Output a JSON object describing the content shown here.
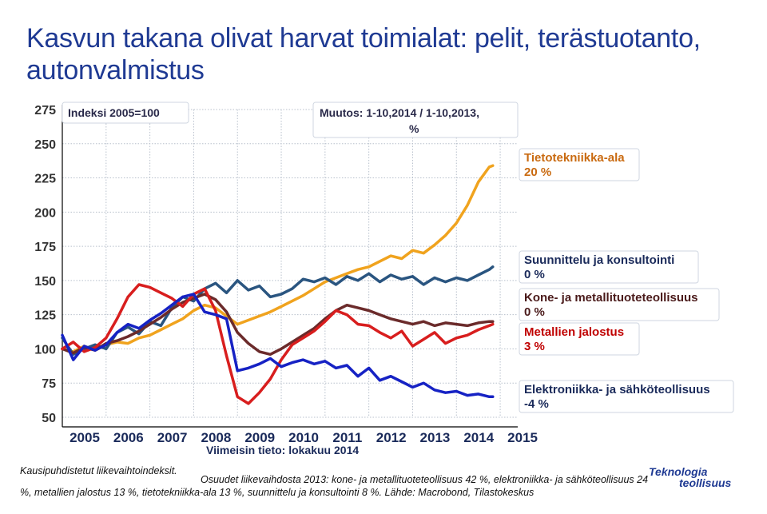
{
  "title": "Kasvun takana olivat harvat toimialat: pelit, terästuotanto, autonvalmistus",
  "notes": {
    "index_base": "Indeksi 2005=100",
    "change_line1": "Muutos: 1-10,2014 / 1-10,2013,",
    "change_line2": "%",
    "latest": "Viimeisin tieto: lokakuu 2014"
  },
  "footer": {
    "line1": "Kausipuhdistetut liikevaihtoindeksit.",
    "line2": "Osuudet liikevaihdosta 2013: kone- ja metallituoteteollisuus 42 %, elektroniikka- ja sähköteollisuus 24 %, metallien jalostus 13 %, tietotekniikka-ala 13 %, suunnittelu ja konsultointi 8 %. Lähde: Macrobond, Tilastokeskus"
  },
  "logo": {
    "line1": "Teknologia",
    "line2": "teollisuus"
  },
  "labels": [
    {
      "name": "Tietotekniikka-ala",
      "change": "20 %",
      "color": "#1a2a5a"
    },
    {
      "name": "Suunnittelu ja konsultointi",
      "change": "0 %",
      "color": "#1a2a5a"
    },
    {
      "name": "Kone- ja metallituoteteollisuus",
      "change": "0 %",
      "color": "#1a2a5a"
    },
    {
      "name": "Metallien jalostus",
      "change": "3 %",
      "color": "#c00000"
    },
    {
      "name": "Elektroniikka- ja sähköteollisuus",
      "change": "-4 %",
      "color": "#1a2a5a"
    }
  ],
  "chart_data": {
    "type": "line",
    "title": "Kasvun takana olivat harvat toimialat: pelit, terästuotanto, autonvalmistus",
    "ylabel": "",
    "ylim": [
      50,
      275
    ],
    "yticks": [
      50,
      75,
      100,
      125,
      150,
      175,
      200,
      225,
      250,
      275
    ],
    "xlim": [
      2005,
      2015.4
    ],
    "xticks": [
      2005,
      2006,
      2007,
      2008,
      2009,
      2010,
      2011,
      2012,
      2013,
      2014,
      2015
    ],
    "grid": true,
    "series": [
      {
        "name": "Tietotekniikka-ala",
        "color": "#f0a31e",
        "x": [
          2005.0,
          2005.25,
          2005.5,
          2005.75,
          2006.0,
          2006.25,
          2006.5,
          2006.75,
          2007.0,
          2007.25,
          2007.5,
          2007.75,
          2008.0,
          2008.25,
          2008.5,
          2008.75,
          2009.0,
          2009.25,
          2009.5,
          2009.75,
          2010.0,
          2010.25,
          2010.5,
          2010.75,
          2011.0,
          2011.25,
          2011.5,
          2011.75,
          2012.0,
          2012.25,
          2012.5,
          2012.75,
          2013.0,
          2013.25,
          2013.5,
          2013.75,
          2014.0,
          2014.25,
          2014.5,
          2014.75,
          2014.83
        ],
        "y": [
          100,
          98,
          102,
          99,
          103,
          105,
          104,
          108,
          110,
          114,
          118,
          122,
          128,
          132,
          130,
          124,
          118,
          121,
          124,
          127,
          131,
          135,
          139,
          144,
          149,
          152,
          155,
          158,
          160,
          164,
          168,
          166,
          172,
          170,
          176,
          183,
          192,
          205,
          222,
          233,
          234
        ]
      },
      {
        "name": "Suunnittelu ja konsultointi",
        "color": "#2a5580",
        "x": [
          2005.0,
          2005.25,
          2005.5,
          2005.75,
          2006.0,
          2006.25,
          2006.5,
          2006.75,
          2007.0,
          2007.25,
          2007.5,
          2007.75,
          2008.0,
          2008.25,
          2008.5,
          2008.75,
          2009.0,
          2009.25,
          2009.5,
          2009.75,
          2010.0,
          2010.25,
          2010.5,
          2010.75,
          2011.0,
          2011.25,
          2011.5,
          2011.75,
          2012.0,
          2012.25,
          2012.5,
          2012.75,
          2013.0,
          2013.25,
          2013.5,
          2013.75,
          2014.0,
          2014.25,
          2014.5,
          2014.75,
          2014.83
        ],
        "y": [
          108,
          96,
          100,
          103,
          100,
          112,
          116,
          111,
          120,
          117,
          130,
          138,
          135,
          144,
          148,
          141,
          150,
          143,
          146,
          138,
          140,
          144,
          151,
          149,
          152,
          147,
          153,
          150,
          155,
          149,
          154,
          151,
          153,
          147,
          152,
          149,
          152,
          150,
          154,
          158,
          160
        ]
      },
      {
        "name": "Kone- ja metallituoteteollisuus",
        "color": "#6b2b2b",
        "x": [
          2005.0,
          2005.25,
          2005.5,
          2005.75,
          2006.0,
          2006.25,
          2006.5,
          2006.75,
          2007.0,
          2007.25,
          2007.5,
          2007.75,
          2008.0,
          2008.25,
          2008.5,
          2008.75,
          2009.0,
          2009.25,
          2009.5,
          2009.75,
          2010.0,
          2010.25,
          2010.5,
          2010.75,
          2011.0,
          2011.25,
          2011.5,
          2011.75,
          2012.0,
          2012.25,
          2012.5,
          2012.75,
          2013.0,
          2013.25,
          2013.5,
          2013.75,
          2014.0,
          2014.25,
          2014.5,
          2014.75,
          2014.83
        ],
        "y": [
          100,
          97,
          101,
          99,
          104,
          106,
          109,
          113,
          118,
          123,
          129,
          134,
          137,
          140,
          136,
          127,
          112,
          104,
          98,
          96,
          100,
          105,
          110,
          115,
          122,
          128,
          132,
          130,
          128,
          125,
          122,
          120,
          118,
          120,
          117,
          119,
          118,
          117,
          119,
          120,
          120
        ]
      },
      {
        "name": "Metallien jalostus",
        "color": "#d81e1e",
        "x": [
          2005.0,
          2005.25,
          2005.5,
          2005.75,
          2006.0,
          2006.25,
          2006.5,
          2006.75,
          2007.0,
          2007.25,
          2007.5,
          2007.75,
          2008.0,
          2008.25,
          2008.5,
          2008.75,
          2009.0,
          2009.25,
          2009.5,
          2009.75,
          2010.0,
          2010.25,
          2010.5,
          2010.75,
          2011.0,
          2011.25,
          2011.5,
          2011.75,
          2012.0,
          2012.25,
          2012.5,
          2012.75,
          2013.0,
          2013.25,
          2013.5,
          2013.75,
          2014.0,
          2014.25,
          2014.5,
          2014.75,
          2014.83
        ],
        "y": [
          100,
          105,
          98,
          101,
          108,
          122,
          138,
          147,
          145,
          141,
          137,
          131,
          140,
          144,
          128,
          95,
          65,
          60,
          68,
          78,
          92,
          103,
          108,
          113,
          120,
          128,
          125,
          118,
          117,
          112,
          108,
          113,
          102,
          107,
          112,
          104,
          108,
          110,
          114,
          117,
          118
        ]
      },
      {
        "name": "Elektroniikka- ja sähköteollisuus",
        "color": "#1622c4",
        "x": [
          2005.0,
          2005.25,
          2005.5,
          2005.75,
          2006.0,
          2006.25,
          2006.5,
          2006.75,
          2007.0,
          2007.25,
          2007.5,
          2007.75,
          2008.0,
          2008.25,
          2008.5,
          2008.75,
          2009.0,
          2009.25,
          2009.5,
          2009.75,
          2010.0,
          2010.25,
          2010.5,
          2010.75,
          2011.0,
          2011.25,
          2011.5,
          2011.75,
          2012.0,
          2012.25,
          2012.5,
          2012.75,
          2013.0,
          2013.25,
          2013.5,
          2013.75,
          2014.0,
          2014.25,
          2014.5,
          2014.75,
          2014.83
        ],
        "y": [
          110,
          92,
          102,
          99,
          103,
          112,
          118,
          115,
          121,
          126,
          132,
          138,
          140,
          127,
          125,
          122,
          84,
          86,
          89,
          93,
          87,
          90,
          92,
          89,
          91,
          86,
          88,
          80,
          86,
          77,
          80,
          76,
          72,
          75,
          70,
          68,
          69,
          66,
          67,
          65,
          65
        ]
      }
    ]
  }
}
